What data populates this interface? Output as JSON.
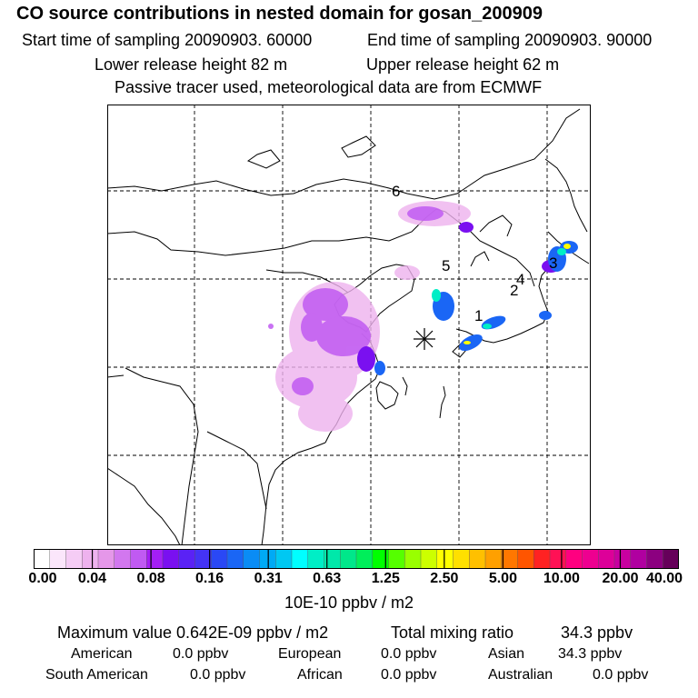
{
  "header": {
    "title": "CO  source contributions in nested domain for gosan_200909",
    "start": "Start time of sampling 20090903. 60000",
    "end": "End time of sampling 20090903. 90000",
    "lower": "Lower release height   82 m",
    "upper": "Upper release height   62 m",
    "note": "Passive tracer used, meteorological data are from ECMWF"
  },
  "map": {
    "site_markers": [
      "1",
      "2",
      "3",
      "4",
      "5",
      "6"
    ],
    "receptor_icon": "asterisk-icon"
  },
  "colorbar": {
    "ticks": [
      "0.00",
      "0.04",
      "0.08",
      "0.16",
      "0.31",
      "0.63",
      "1.25",
      "2.50",
      "5.00",
      "10.00",
      "20.00",
      "40.00"
    ],
    "unit": "10E-10 ppbv / m2",
    "colors": [
      "#ffffff",
      "#fbe6fb",
      "#f5ccf5",
      "#eeb2ee",
      "#e597e9",
      "#d277ef",
      "#c05af2",
      "#a41ff5",
      "#7a10f0",
      "#5a22f5",
      "#4433f5",
      "#2a48f5",
      "#1a66f5",
      "#0a8cf5",
      "#00aaf5",
      "#00c8f2",
      "#00ffff",
      "#00eec6",
      "#00e8aa",
      "#00e78a",
      "#00ee5a",
      "#00ff00",
      "#55ff00",
      "#99ff00",
      "#ccff00",
      "#ffff00",
      "#ffe000",
      "#ffc000",
      "#ffa000",
      "#ff7700",
      "#ff5500",
      "#ff2222",
      "#ff1155",
      "#ff0080",
      "#ee0090",
      "#dd0099",
      "#c800a0",
      "#b000a0",
      "#8c0080",
      "#66005a"
    ]
  },
  "summary": {
    "max_value": "Maximum value  0.642E-09 ppbv / m2",
    "total_label": "Total mixing ratio",
    "total_value": "34.3 ppbv",
    "regions": [
      {
        "name": "American",
        "value": "0.0 ppbv"
      },
      {
        "name": "European",
        "value": "0.0 ppbv"
      },
      {
        "name": "Asian",
        "value": "34.3 ppbv"
      },
      {
        "name": "South American",
        "value": "0.0 ppbv"
      },
      {
        "name": "African",
        "value": "0.0 ppbv"
      },
      {
        "name": "Australian",
        "value": "0.0 ppbv"
      }
    ]
  }
}
